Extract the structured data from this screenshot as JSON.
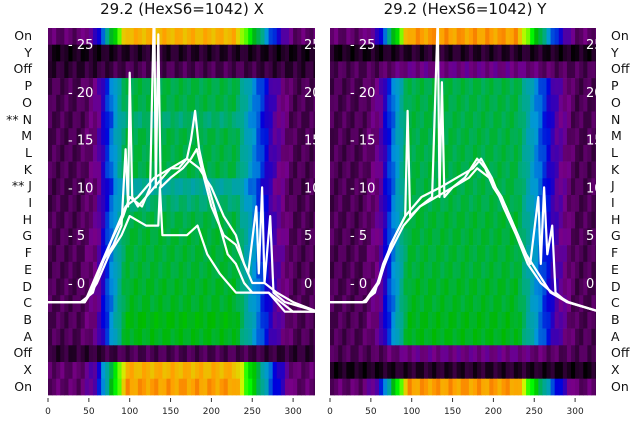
{
  "chart_data": [
    {
      "type": "heatmap",
      "title": "29.2 (HexS6=1042) X",
      "row_labels": [
        "On",
        "Y",
        "Off",
        "P",
        "O",
        "** N",
        "M",
        "L",
        "K",
        "** J",
        "I",
        "H",
        "G",
        "F",
        "E",
        "D",
        "C",
        "B",
        "A",
        "Off",
        "X",
        "On"
      ],
      "row_peak_intensity": [
        0.78,
        0.03,
        0.06,
        0.45,
        0.45,
        0.42,
        0.45,
        0.45,
        0.45,
        0.38,
        0.42,
        0.45,
        0.46,
        0.46,
        0.46,
        0.47,
        0.47,
        0.49,
        0.48,
        0.06,
        0.78,
        0.8
      ],
      "xticks": [
        0,
        50,
        100,
        150,
        200,
        250,
        300
      ],
      "xlim": [
        0,
        330
      ],
      "yticks": [
        0,
        5,
        10,
        15,
        20,
        25
      ],
      "ylim": [
        -5,
        27
      ],
      "series": [
        {
          "name": "trace-1",
          "points": [
            [
              0,
              -2
            ],
            [
              40,
              -2
            ],
            [
              55,
              -1
            ],
            [
              65,
              2
            ],
            [
              80,
              4
            ],
            [
              90,
              6
            ],
            [
              95,
              14
            ],
            [
              98,
              8
            ],
            [
              100,
              22
            ],
            [
              103,
              9
            ],
            [
              110,
              8
            ],
            [
              120,
              9
            ],
            [
              130,
              10
            ],
            [
              140,
              11
            ],
            [
              150,
              12
            ],
            [
              160,
              12
            ],
            [
              170,
              13
            ],
            [
              175,
              15
            ],
            [
              180,
              18
            ],
            [
              185,
              14
            ],
            [
              190,
              12
            ],
            [
              200,
              9
            ],
            [
              210,
              6
            ],
            [
              220,
              3
            ],
            [
              230,
              2
            ],
            [
              240,
              0
            ],
            [
              250,
              -1
            ],
            [
              260,
              -1
            ],
            [
              270,
              -1
            ],
            [
              285,
              -2
            ],
            [
              300,
              -3
            ],
            [
              330,
              -3
            ]
          ]
        },
        {
          "name": "trace-2",
          "points": [
            [
              0,
              -2
            ],
            [
              45,
              -2
            ],
            [
              60,
              0
            ],
            [
              75,
              3
            ],
            [
              90,
              5
            ],
            [
              100,
              7
            ],
            [
              120,
              6
            ],
            [
              135,
              6
            ],
            [
              137,
              10
            ],
            [
              140,
              5
            ],
            [
              150,
              5
            ],
            [
              170,
              5
            ],
            [
              183,
              6
            ],
            [
              195,
              3
            ],
            [
              210,
              1
            ],
            [
              230,
              -1
            ],
            [
              245,
              -1
            ],
            [
              260,
              -1
            ],
            [
              270,
              -1
            ],
            [
              290,
              -3
            ],
            [
              330,
              -3
            ]
          ]
        },
        {
          "name": "trace-3",
          "points": [
            [
              0,
              -2
            ],
            [
              45,
              -2
            ],
            [
              60,
              1
            ],
            [
              75,
              4
            ],
            [
              92,
              7
            ],
            [
              100,
              9
            ],
            [
              115,
              8
            ],
            [
              125,
              10
            ],
            [
              130,
              30
            ],
            [
              132,
              10
            ],
            [
              135,
              26
            ],
            [
              138,
              10
            ],
            [
              150,
              11
            ],
            [
              165,
              12
            ],
            [
              175,
              13
            ],
            [
              182,
              14
            ],
            [
              188,
              12
            ],
            [
              200,
              8
            ],
            [
              215,
              5
            ],
            [
              230,
              4
            ],
            [
              245,
              1
            ],
            [
              255,
              8
            ],
            [
              258,
              1
            ],
            [
              262,
              10
            ],
            [
              265,
              0
            ],
            [
              272,
              7
            ],
            [
              276,
              -1
            ],
            [
              290,
              -2
            ],
            [
              330,
              -3
            ]
          ]
        },
        {
          "name": "trace-4",
          "points": [
            [
              0,
              -2
            ],
            [
              45,
              -2
            ],
            [
              62,
              1
            ],
            [
              80,
              5
            ],
            [
              95,
              8
            ],
            [
              110,
              9
            ],
            [
              130,
              11
            ],
            [
              150,
              12
            ],
            [
              170,
              13
            ],
            [
              185,
              12
            ],
            [
              200,
              10
            ],
            [
              215,
              7
            ],
            [
              230,
              5
            ],
            [
              240,
              2
            ],
            [
              250,
              0
            ],
            [
              265,
              0
            ],
            [
              280,
              -1
            ],
            [
              300,
              -2
            ],
            [
              330,
              -3
            ]
          ]
        }
      ]
    },
    {
      "type": "heatmap",
      "title": "29.2 (HexS6=1042) Y",
      "row_labels": [
        "On",
        "Y",
        "Off",
        "P",
        "O",
        "N",
        "M",
        "L",
        "K",
        "J",
        "I",
        "H",
        "G",
        "F",
        "E",
        "D",
        "C",
        "B",
        "A",
        "Off",
        "X",
        "On"
      ],
      "row_peak_intensity": [
        0.8,
        0.03,
        0.1,
        0.45,
        0.45,
        0.45,
        0.45,
        0.45,
        0.45,
        0.45,
        0.45,
        0.46,
        0.46,
        0.46,
        0.46,
        0.47,
        0.47,
        0.48,
        0.48,
        0.1,
        0.03,
        0.8
      ],
      "xticks": [
        0,
        50,
        100,
        150,
        200,
        250,
        300
      ],
      "xlim": [
        0,
        330
      ],
      "yticks": [
        0,
        5,
        10,
        15,
        20,
        25
      ],
      "ylim": [
        -5,
        27
      ],
      "series": [
        {
          "name": "trace-1",
          "points": [
            [
              0,
              -2
            ],
            [
              40,
              -2
            ],
            [
              55,
              -1
            ],
            [
              65,
              2
            ],
            [
              80,
              5
            ],
            [
              92,
              7
            ],
            [
              95,
              18
            ],
            [
              98,
              7
            ],
            [
              110,
              8
            ],
            [
              125,
              9
            ],
            [
              132,
              28
            ],
            [
              134,
              9
            ],
            [
              137,
              21
            ],
            [
              140,
              9
            ],
            [
              150,
              10
            ],
            [
              165,
              11
            ],
            [
              180,
              13
            ],
            [
              190,
              12
            ],
            [
              200,
              10
            ],
            [
              215,
              8
            ],
            [
              230,
              5
            ],
            [
              245,
              2
            ],
            [
              255,
              9
            ],
            [
              258,
              2
            ],
            [
              262,
              10
            ],
            [
              266,
              3
            ],
            [
              272,
              6
            ],
            [
              276,
              -1
            ],
            [
              290,
              -2
            ],
            [
              330,
              -3
            ]
          ]
        },
        {
          "name": "trace-2",
          "points": [
            [
              0,
              -2
            ],
            [
              42,
              -2
            ],
            [
              58,
              0
            ],
            [
              72,
              3
            ],
            [
              90,
              6
            ],
            [
              110,
              8
            ],
            [
              130,
              9
            ],
            [
              150,
              10
            ],
            [
              170,
              11
            ],
            [
              180,
              12
            ],
            [
              195,
              11
            ],
            [
              210,
              9
            ],
            [
              225,
              6
            ],
            [
              240,
              3
            ],
            [
              255,
              1
            ],
            [
              270,
              -1
            ],
            [
              290,
              -2
            ],
            [
              330,
              -3
            ]
          ]
        },
        {
          "name": "trace-3",
          "points": [
            [
              0,
              -2
            ],
            [
              44,
              -2
            ],
            [
              60,
              0
            ],
            [
              74,
              4
            ],
            [
              92,
              7
            ],
            [
              112,
              9
            ],
            [
              135,
              10
            ],
            [
              155,
              11
            ],
            [
              175,
              12
            ],
            [
              185,
              13
            ],
            [
              198,
              11
            ],
            [
              212,
              8
            ],
            [
              228,
              5
            ],
            [
              242,
              2
            ],
            [
              258,
              0
            ],
            [
              272,
              -1
            ],
            [
              292,
              -2
            ],
            [
              330,
              -3
            ]
          ]
        }
      ]
    }
  ]
}
